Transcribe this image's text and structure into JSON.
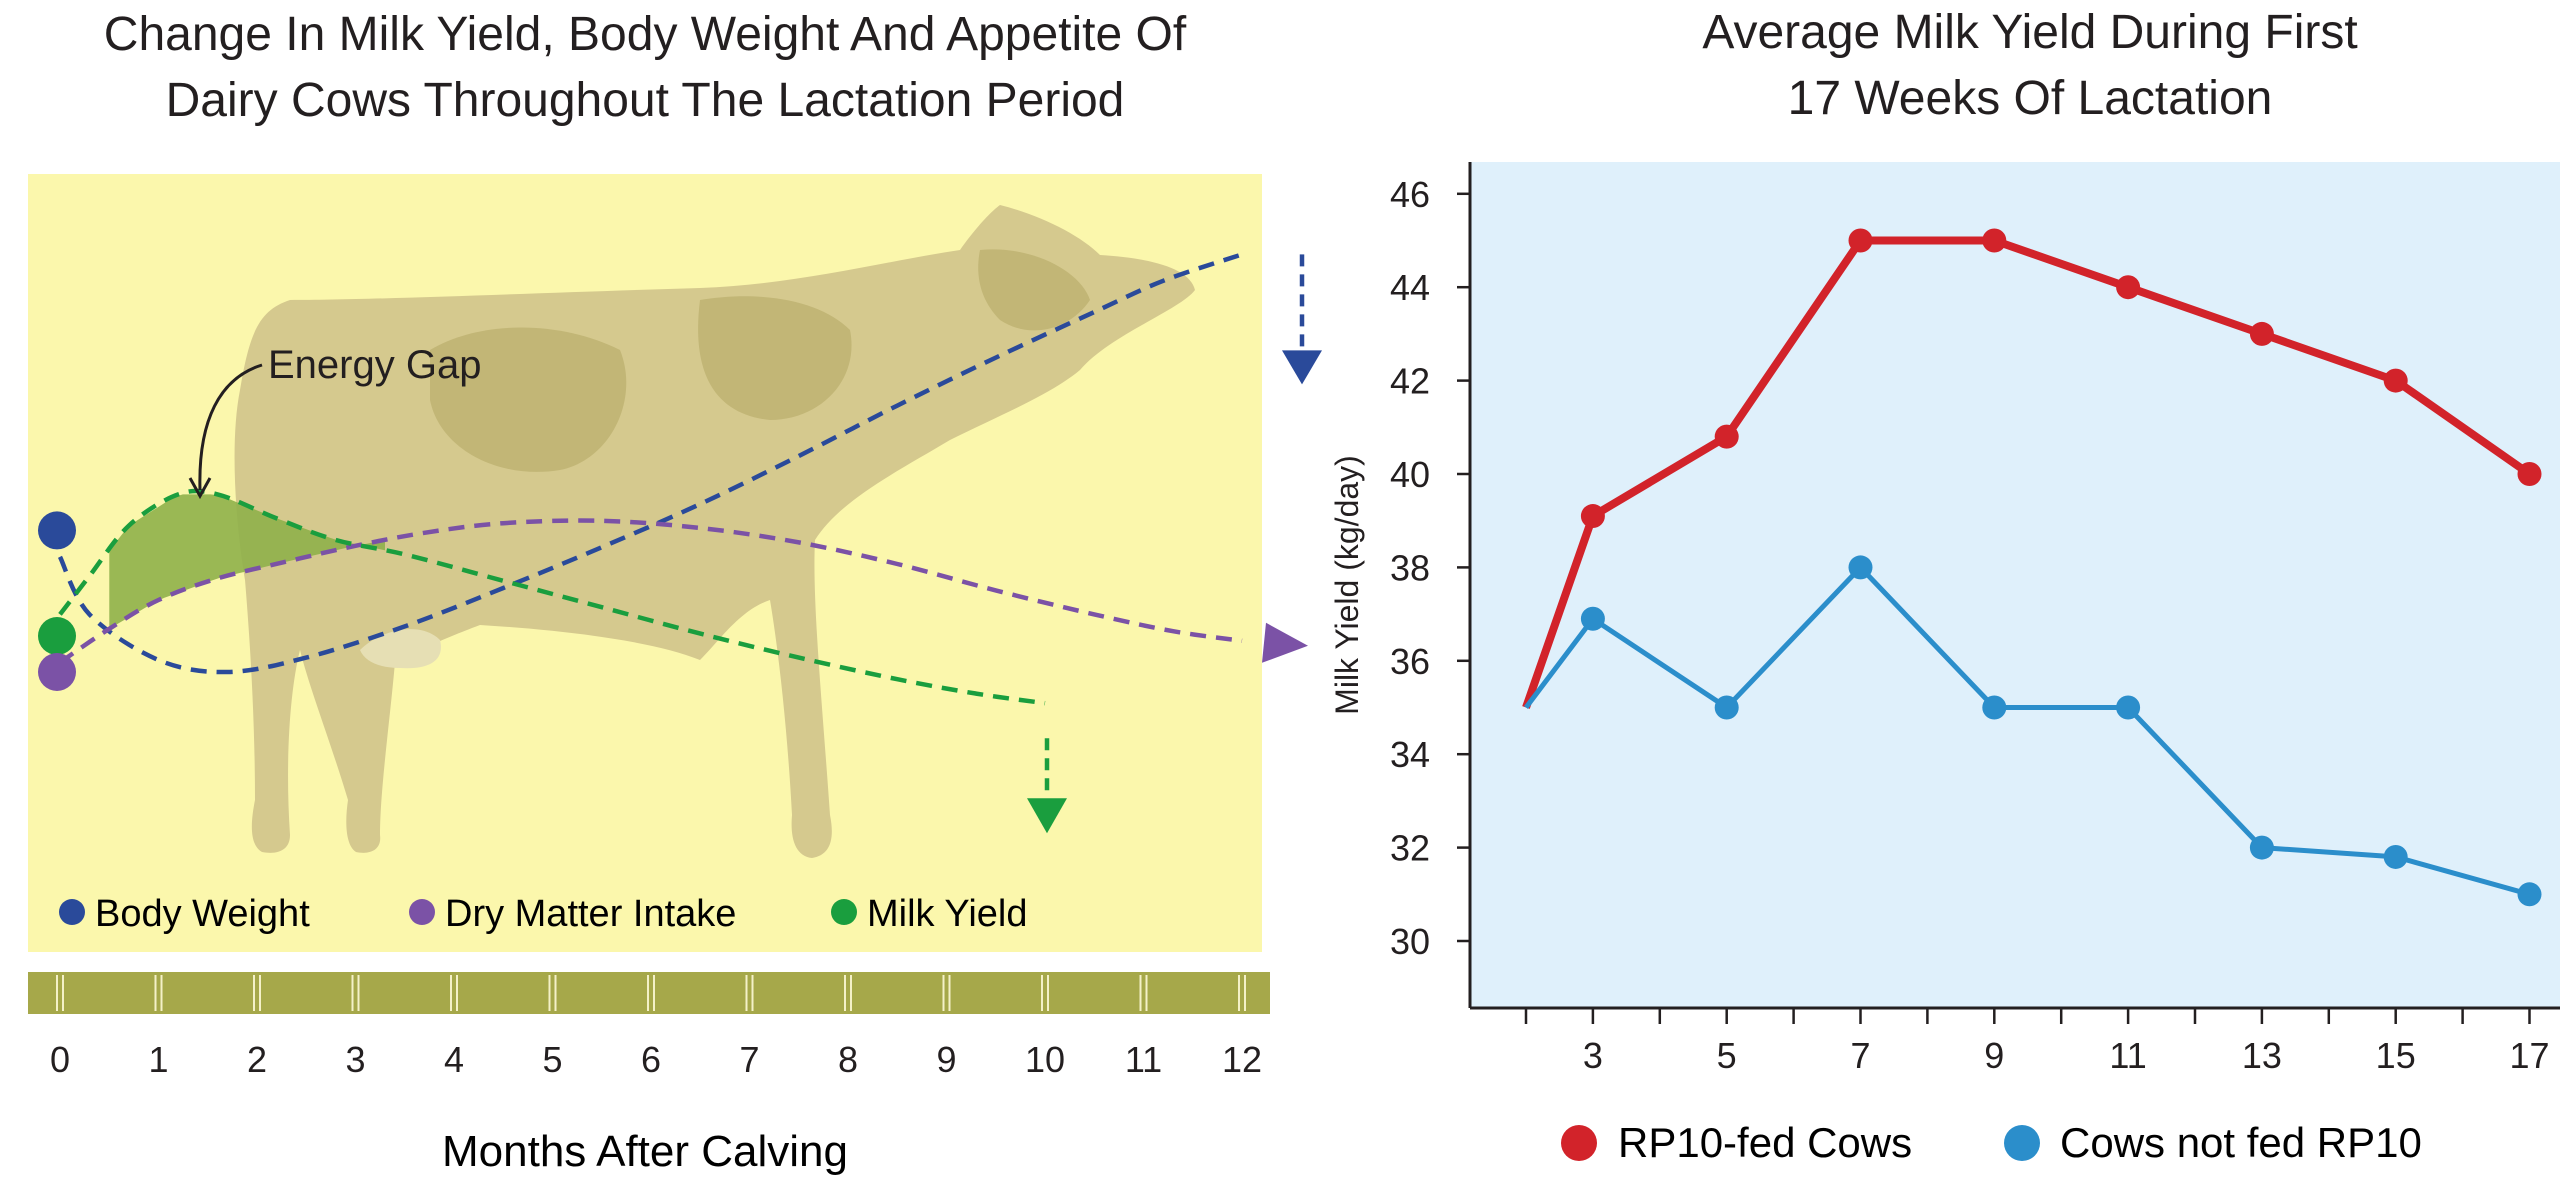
{
  "chart_data": [
    {
      "type": "line",
      "title": "Change In Milk Yield, Body Weight And Appetite Of Dairy Cows Throughout The Lactation Period",
      "title_lines": [
        "Change In Milk Yield, Body Weight And Appetite Of",
        "Dairy Cows Throughout The Lactation Period"
      ],
      "xlabel": "Months After Calving",
      "ylabel": "",
      "x_ticks": [
        "0",
        "1",
        "2",
        "3",
        "4",
        "5",
        "6",
        "7",
        "8",
        "9",
        "10",
        "11",
        "12"
      ],
      "xlim": [
        0,
        12
      ],
      "annotation": "Energy Gap",
      "legend_position": "bottom",
      "background_color": "#fbf7ac",
      "axis_band_color": "#a6a84a",
      "series": [
        {
          "name": "Body Weight",
          "color": "#2a4a9a",
          "values": [
            [
              0,
              3.4
            ],
            [
              0.3,
              2.2
            ],
            [
              1.0,
              1.25
            ],
            [
              1.7,
              1.0
            ],
            [
              2.5,
              1.3
            ],
            [
              3.5,
              1.95
            ],
            [
              4.5,
              2.75
            ],
            [
              5.5,
              3.6
            ],
            [
              6.5,
              4.5
            ],
            [
              7.5,
              5.5
            ],
            [
              8.5,
              6.55
            ],
            [
              9.5,
              7.55
            ],
            [
              10.5,
              8.5
            ],
            [
              11.2,
              9.15
            ],
            [
              12,
              9.7
            ]
          ]
        },
        {
          "name": "Dry Matter Intake",
          "color": "#7b52a6",
          "values": [
            [
              0,
              1.2
            ],
            [
              0.5,
              1.9
            ],
            [
              1.0,
              2.5
            ],
            [
              1.6,
              2.95
            ],
            [
              2.3,
              3.3
            ],
            [
              3.0,
              3.63
            ],
            [
              3.7,
              3.9
            ],
            [
              4.5,
              4.1
            ],
            [
              5.5,
              4.15
            ],
            [
              6.5,
              4.0
            ],
            [
              7.5,
              3.7
            ],
            [
              8.5,
              3.25
            ],
            [
              9.5,
              2.7
            ],
            [
              10.5,
              2.2
            ],
            [
              11.3,
              1.85
            ],
            [
              12,
              1.65
            ]
          ]
        },
        {
          "name": "Milk Yield",
          "color": "#1a9e3e",
          "values": [
            [
              0,
              2.2
            ],
            [
              0.3,
              3.0
            ],
            [
              0.7,
              4.05
            ],
            [
              1.2,
              4.7
            ],
            [
              1.6,
              4.7
            ],
            [
              2.2,
              4.2
            ],
            [
              2.8,
              3.75
            ],
            [
              3.5,
              3.45
            ],
            [
              4.5,
              2.9
            ],
            [
              5.5,
              2.35
            ],
            [
              6.5,
              1.8
            ],
            [
              7.5,
              1.3
            ],
            [
              8.5,
              0.85
            ],
            [
              9.3,
              0.55
            ],
            [
              10,
              0.35
            ]
          ]
        }
      ]
    },
    {
      "type": "line",
      "title": "Average Milk Yield During First 17 Weeks Of Lactation",
      "title_lines": [
        "Average Milk Yield During First",
        "17 Weeks Of Lactation"
      ],
      "xlabel": "",
      "ylabel": "Milk Yield (kg/day)",
      "x_ticks": [
        "3",
        "5",
        "7",
        "9",
        "11",
        "13",
        "15",
        "17"
      ],
      "y_ticks": [
        "30",
        "32",
        "34",
        "36",
        "38",
        "40",
        "42",
        "44",
        "46"
      ],
      "xlim": [
        0.5,
        17.5
      ],
      "ylim": [
        28.5,
        46.6
      ],
      "grid": false,
      "legend_position": "bottom",
      "background_color": "#dff0fb",
      "x": [
        2,
        3,
        5,
        7,
        9,
        11,
        13,
        15,
        17
      ],
      "series": [
        {
          "name": "RP10-fed Cows",
          "color": "#d2232a",
          "values": [
            35.0,
            39.1,
            40.8,
            45.0,
            45.0,
            44.0,
            43.0,
            42.0,
            40.0
          ]
        },
        {
          "name": "Cows not fed RP10",
          "color": "#2b8ecb",
          "values": [
            35.0,
            36.9,
            35.0,
            38.0,
            35.0,
            35.0,
            32.0,
            31.8,
            31.0
          ]
        }
      ]
    }
  ]
}
